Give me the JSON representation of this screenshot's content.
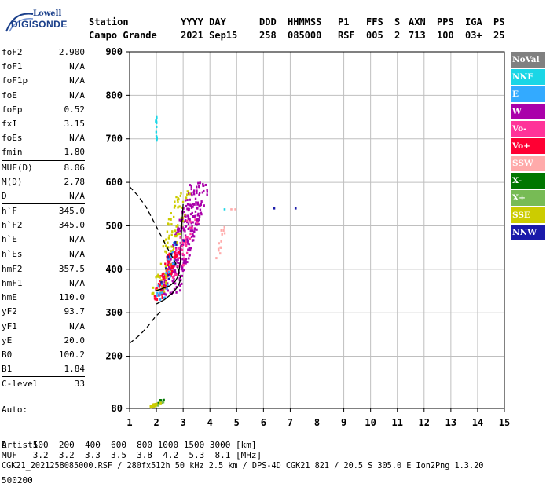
{
  "logo": {
    "brand": "Lowell",
    "product": "DIGISONDE"
  },
  "header": {
    "row1": [
      "Station",
      "YYYY DAY",
      "DDD",
      "HHMMSS",
      "P1",
      "FFS",
      "S",
      "AXN",
      "PPS",
      "IGA",
      "PS"
    ],
    "row2": [
      "Campo Grande",
      "2021 Sep15",
      "258",
      "085000",
      "RSF",
      "005",
      "2",
      "713",
      "100",
      "03+",
      "25"
    ]
  },
  "params": [
    {
      "name": "foF2",
      "value": "2.900"
    },
    {
      "name": "foF1",
      "value": "N/A"
    },
    {
      "name": "foF1p",
      "value": "N/A"
    },
    {
      "name": "foE",
      "value": "N/A"
    },
    {
      "name": "foEp",
      "value": "0.52"
    },
    {
      "name": "fxI",
      "value": "3.15"
    },
    {
      "name": "foEs",
      "value": "N/A"
    },
    {
      "name": "fmin",
      "value": "1.80"
    },
    {
      "name": "MUF(D)",
      "value": "8.06",
      "sep": true
    },
    {
      "name": "M(D)",
      "value": "2.78"
    },
    {
      "name": "D",
      "value": "N/A"
    },
    {
      "name": "h`F",
      "value": "345.0",
      "sep": true
    },
    {
      "name": "h`F2",
      "value": "345.0"
    },
    {
      "name": "h`E",
      "value": "N/A"
    },
    {
      "name": "h`Es",
      "value": "N/A"
    },
    {
      "name": "hmF2",
      "value": "357.5",
      "sep": true
    },
    {
      "name": "hmF1",
      "value": "N/A"
    },
    {
      "name": "hmE",
      "value": "110.0"
    },
    {
      "name": "yF2",
      "value": "93.7"
    },
    {
      "name": "yF1",
      "value": "N/A"
    },
    {
      "name": "yE",
      "value": "20.0"
    },
    {
      "name": "B0",
      "value": "100.2"
    },
    {
      "name": "B1",
      "value": "1.84"
    },
    {
      "name": "C-level",
      "value": "33",
      "sep": true
    }
  ],
  "auto": {
    "line1": "Auto:",
    "line2": "Artist5",
    "line3": "500200"
  },
  "legend": [
    {
      "label": "NoVal",
      "color": "#808080"
    },
    {
      "label": "NNE",
      "color": "#1ad6e6"
    },
    {
      "label": "E",
      "color": "#33aaff"
    },
    {
      "label": "W",
      "color": "#aa00aa"
    },
    {
      "label": "Vo-",
      "color": "#ff3399"
    },
    {
      "label": "Vo+",
      "color": "#ff0033"
    },
    {
      "label": "SSW",
      "color": "#ffaaaa"
    },
    {
      "label": "X-",
      "color": "#007700"
    },
    {
      "label": "X+",
      "color": "#77bb55"
    },
    {
      "label": "SSE",
      "color": "#cccc00"
    },
    {
      "label": "NNW",
      "color": "#1a1aaa"
    }
  ],
  "footer": {
    "d_row": "D     100  200  400  600  800 1000 1500 3000 [km]",
    "muf_row": "MUF   3.2  3.2  3.3  3.5  3.8  4.2  5.3  8.1 [MHz]",
    "file_row": "CGK21_2021258085000.RSF / 280fx512h 50 kHz 2.5 km / DPS-4D CGK21 821 / 20.5 S 305.0 E Ion2Png 1.3.20"
  },
  "chart_data": {
    "type": "scatter",
    "xlabel": "",
    "ylabel": "",
    "xlim": [
      1,
      15
    ],
    "ylim": [
      80,
      900
    ],
    "x_ticks": [
      "1",
      "2",
      "3",
      "4",
      "5",
      "6",
      "7",
      "8",
      "9",
      "10",
      "11",
      "12",
      "13",
      "14",
      "15"
    ],
    "y_ticks": [
      "80",
      "200",
      "300",
      "400",
      "500",
      "600",
      "700",
      "800",
      "900"
    ],
    "grid": true,
    "traces": {
      "profile_solid": [
        [
          1.95,
          350
        ],
        [
          2.2,
          355
        ],
        [
          2.5,
          362
        ],
        [
          2.7,
          372
        ],
        [
          2.82,
          385
        ],
        [
          2.9,
          420
        ],
        [
          2.95,
          500
        ],
        [
          3.0,
          550
        ]
      ],
      "underlying_solid": [
        [
          2.0,
          320
        ],
        [
          2.3,
          330
        ],
        [
          2.6,
          345
        ],
        [
          2.8,
          360
        ],
        [
          2.9,
          375
        ]
      ],
      "topside_dashed": [
        [
          1.0,
          590
        ],
        [
          1.3,
          570
        ],
        [
          1.6,
          545
        ],
        [
          1.9,
          510
        ],
        [
          2.15,
          480
        ],
        [
          2.4,
          450
        ],
        [
          2.6,
          428
        ],
        [
          2.75,
          410
        ],
        [
          2.85,
          395
        ],
        [
          2.9,
          380
        ]
      ],
      "lower_dashed": [
        [
          1.0,
          230
        ],
        [
          1.4,
          250
        ],
        [
          1.7,
          270
        ],
        [
          1.95,
          290
        ],
        [
          2.2,
          305
        ]
      ]
    },
    "clusters": [
      {
        "direction": "NNE",
        "x": [
          1.98,
          2.02
        ],
        "y": [
          685,
          750
        ],
        "count": 16
      },
      {
        "direction": "W",
        "x": [
          2.2,
          3.9
        ],
        "y": [
          340,
          600
        ],
        "count": 260
      },
      {
        "direction": "Vo+",
        "x": [
          1.9,
          2.8
        ],
        "y": [
          330,
          440
        ],
        "count": 90
      },
      {
        "direction": "SSE",
        "x": [
          1.9,
          3.2
        ],
        "y": [
          340,
          580
        ],
        "count": 90
      },
      {
        "direction": "Vo-",
        "x": [
          2.4,
          3.6
        ],
        "y": [
          380,
          520
        ],
        "count": 40
      },
      {
        "direction": "E",
        "x": [
          2.0,
          2.9
        ],
        "y": [
          330,
          470
        ],
        "count": 25
      },
      {
        "direction": "NNW",
        "x": [
          2.0,
          3.0
        ],
        "y": [
          340,
          470
        ],
        "count": 12
      },
      {
        "direction": "SSW",
        "x": [
          4.2,
          4.6
        ],
        "y": [
          410,
          500
        ],
        "count": 14
      },
      {
        "direction": "X-",
        "x": [
          1.9,
          2.3
        ],
        "y": [
          85,
          100
        ],
        "count": 10
      },
      {
        "direction": "X+",
        "x": [
          1.8,
          2.3
        ],
        "y": [
          84,
          95
        ],
        "count": 14
      },
      {
        "direction": "SSE",
        "x": [
          1.7,
          2.2
        ],
        "y": [
          82,
          93
        ],
        "count": 18
      }
    ],
    "isolated_points": [
      {
        "direction": "NNE",
        "x": 4.55,
        "y": 538
      },
      {
        "direction": "SSW",
        "x": 4.8,
        "y": 538
      },
      {
        "direction": "SSW",
        "x": 4.95,
        "y": 538
      },
      {
        "direction": "NNW",
        "x": 6.4,
        "y": 540
      },
      {
        "direction": "NNW",
        "x": 7.2,
        "y": 540
      }
    ]
  }
}
